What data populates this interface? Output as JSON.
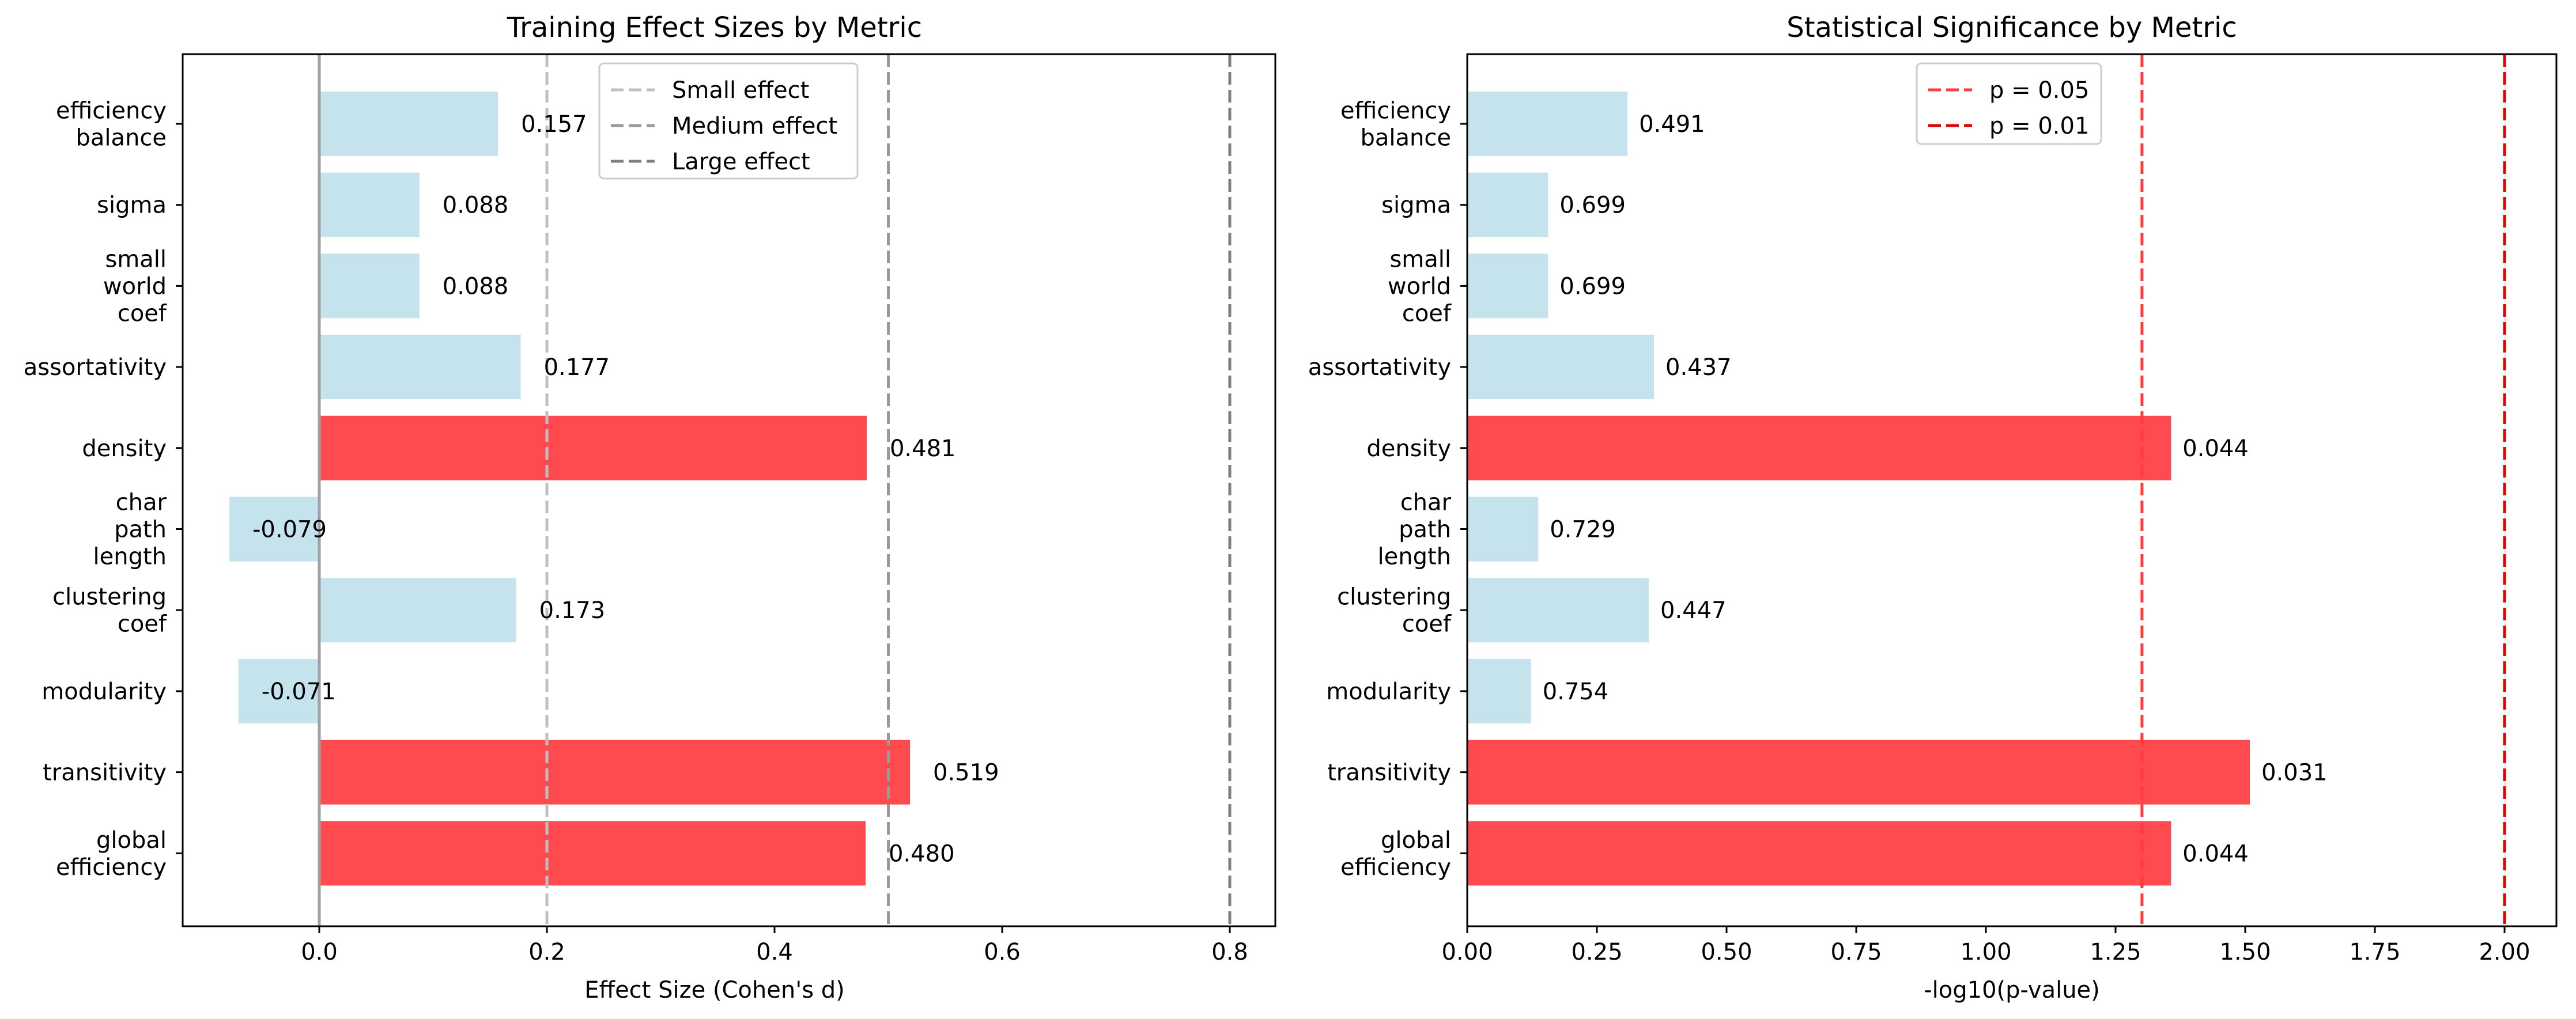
{
  "chart_data": [
    {
      "type": "bar",
      "orientation": "horizontal",
      "title": "Training Effect Sizes by Metric",
      "xlabel": "Effect Size (Cohen's d)",
      "ylabel": "",
      "xlim": [
        -0.12,
        0.84
      ],
      "xticks": [
        "0.0",
        "0.2",
        "0.4",
        "0.6",
        "0.8"
      ],
      "categories": [
        [
          "efficiency",
          "balance"
        ],
        [
          "sigma"
        ],
        [
          "small",
          "world",
          "coef"
        ],
        [
          "assortativity"
        ],
        [
          "density"
        ],
        [
          "char",
          "path",
          "length"
        ],
        [
          "clustering",
          "coef"
        ],
        [
          "modularity"
        ],
        [
          "transitivity"
        ],
        [
          "global",
          "efficiency"
        ]
      ],
      "values": [
        0.157,
        0.088,
        0.088,
        0.177,
        0.481,
        -0.079,
        0.173,
        -0.071,
        0.519,
        0.48
      ],
      "value_labels": [
        "0.157",
        "0.088",
        "0.088",
        "0.177",
        "0.481",
        "-0.079",
        "0.173",
        "-0.071",
        "0.519",
        "0.480"
      ],
      "significant": [
        false,
        false,
        false,
        false,
        true,
        false,
        false,
        false,
        true,
        true
      ],
      "reference_lines": [
        {
          "value": 0.2,
          "label": "Small effect",
          "color": "#bfbfbf"
        },
        {
          "value": 0.5,
          "label": "Medium effect",
          "color": "#9a9a9a"
        },
        {
          "value": 0.8,
          "label": "Large effect",
          "color": "#7f7f7f"
        }
      ],
      "zero_line_color": "#a0a0a0",
      "legend_position": "top-center",
      "grid": false
    },
    {
      "type": "bar",
      "orientation": "horizontal",
      "title": "Statistical Significance by Metric",
      "xlabel": "-log10(p-value)",
      "ylabel": "",
      "xlim": [
        0,
        2.1
      ],
      "xticks": [
        "0.00",
        "0.25",
        "0.50",
        "0.75",
        "1.00",
        "1.25",
        "1.50",
        "1.75",
        "2.00"
      ],
      "categories": [
        [
          "efficiency",
          "balance"
        ],
        [
          "sigma"
        ],
        [
          "small",
          "world",
          "coef"
        ],
        [
          "assortativity"
        ],
        [
          "density"
        ],
        [
          "char",
          "path",
          "length"
        ],
        [
          "clustering",
          "coef"
        ],
        [
          "modularity"
        ],
        [
          "transitivity"
        ],
        [
          "global",
          "efficiency"
        ]
      ],
      "values": [
        0.309,
        0.156,
        0.156,
        0.36,
        1.357,
        0.137,
        0.35,
        0.123,
        1.509,
        1.357
      ],
      "value_labels": [
        "0.491",
        "0.699",
        "0.699",
        "0.437",
        "0.044",
        "0.729",
        "0.447",
        "0.754",
        "0.031",
        "0.044"
      ],
      "significant": [
        false,
        false,
        false,
        false,
        true,
        false,
        false,
        false,
        true,
        true
      ],
      "reference_lines": [
        {
          "value": 1.301,
          "label": "p = 0.05",
          "color": "#ff3b3b"
        },
        {
          "value": 2.0,
          "label": "p = 0.01",
          "color": "#e00000"
        }
      ],
      "legend_position": "top-center",
      "grid": false
    }
  ],
  "colors": {
    "significant_bar": "#ff4b4f",
    "nonsignificant_bar": "#c4e3ed"
  }
}
